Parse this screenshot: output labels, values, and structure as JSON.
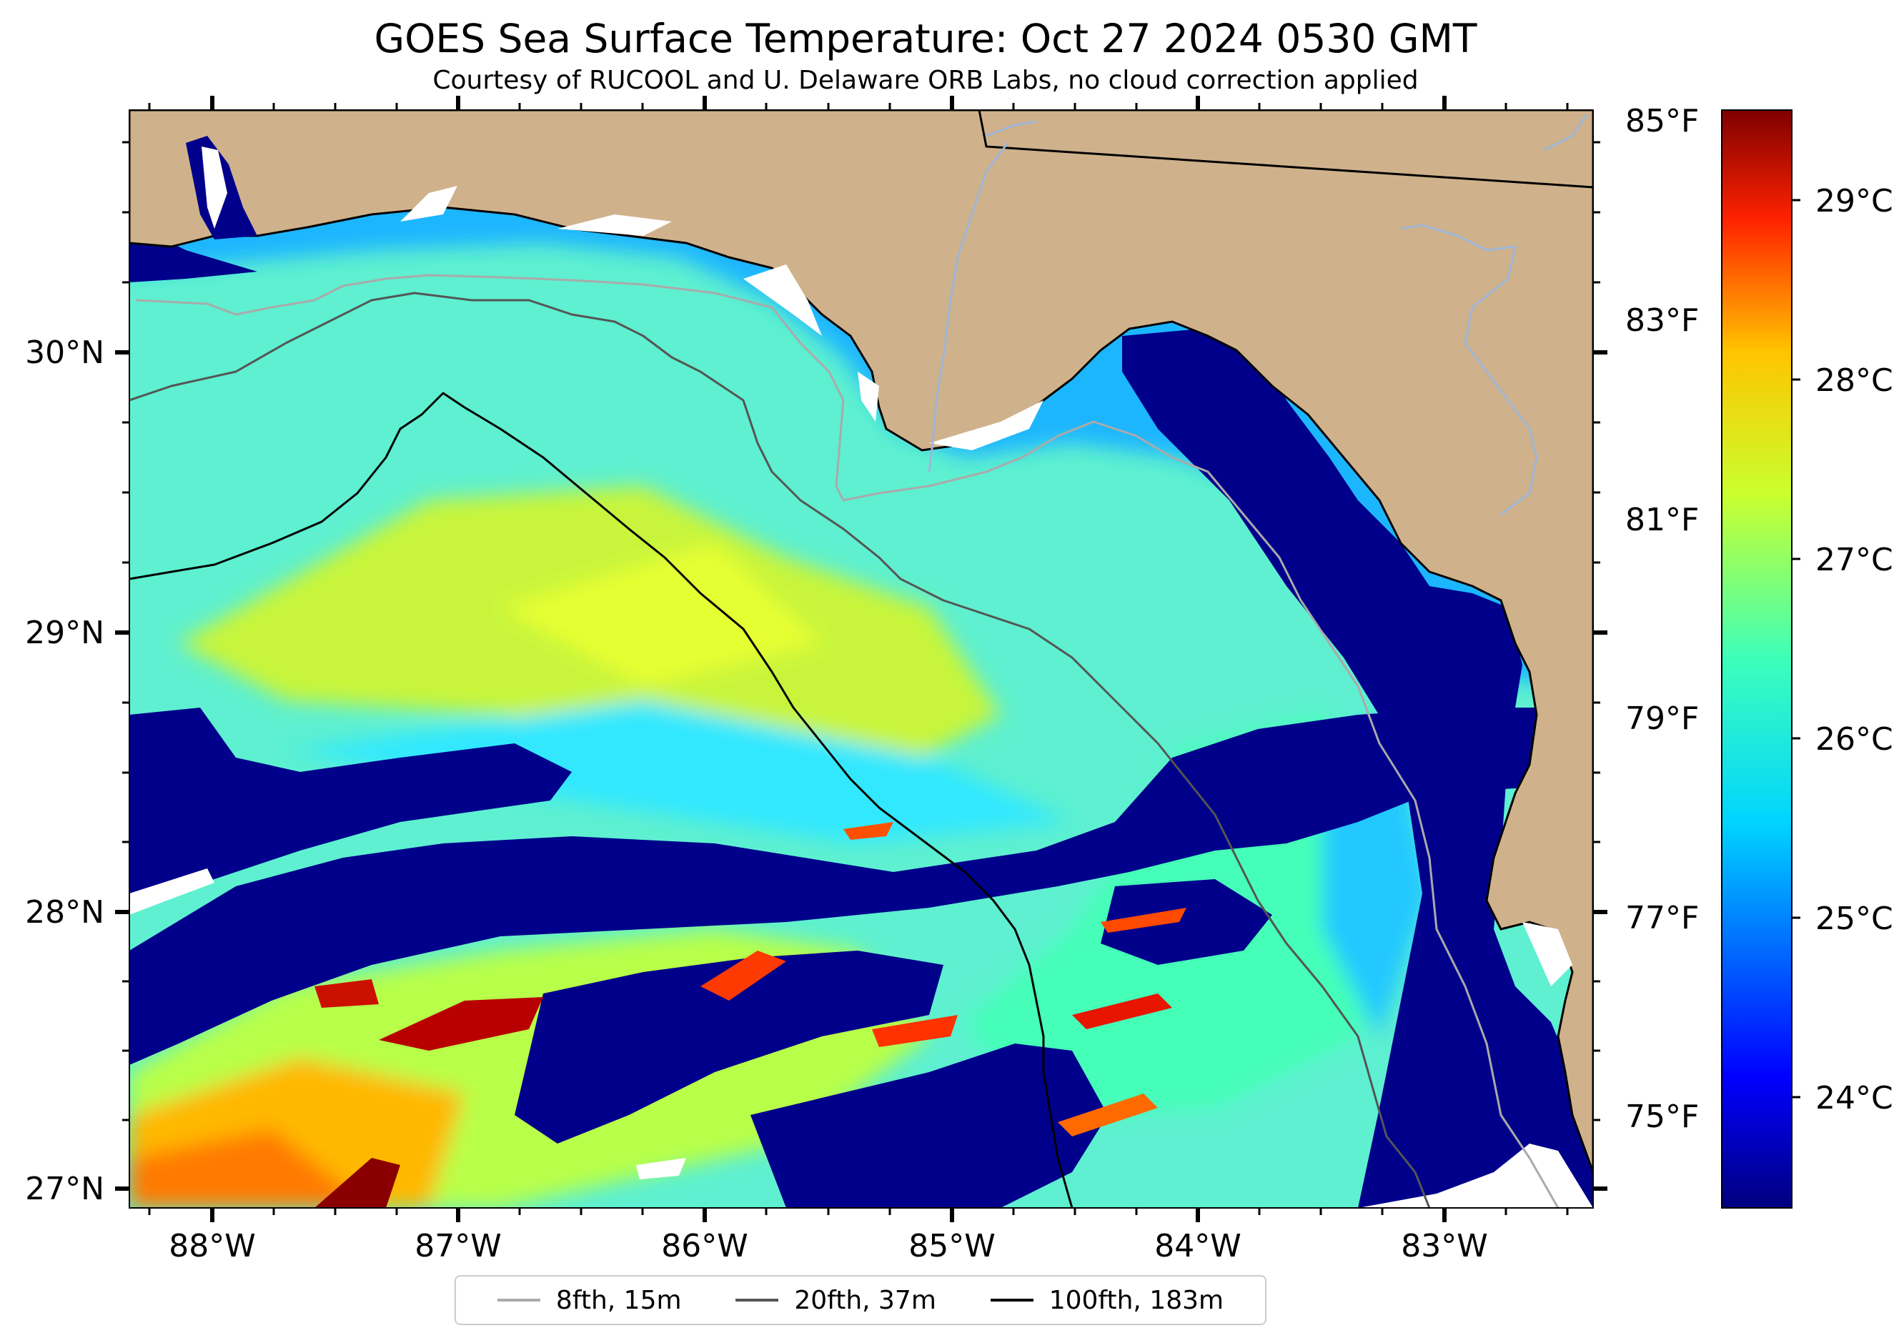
{
  "title": "GOES Sea Surface Temperature: Oct 27 2024 0530 GMT",
  "subtitle": "Courtesy of RUCOOL and U. Delaware ORB Labs, no cloud correction applied",
  "map": {
    "lon_range": [
      -88.33,
      -82.39
    ],
    "lat_range": [
      26.93,
      30.85
    ],
    "lon_ticks": [
      "88°W",
      "87°W",
      "86°W",
      "85°W",
      "84°W",
      "83°W"
    ],
    "lat_ticks": [
      "30°N",
      "29°N",
      "28°N",
      "27°N"
    ],
    "land_color": "#cfb28b",
    "coast_color": "#000000",
    "river_color": "#9fb6d6"
  },
  "colorbar": {
    "fahrenheit_ticks": [
      "85°F",
      "83°F",
      "81°F",
      "79°F",
      "77°F",
      "75°F"
    ],
    "celsius_ticks": [
      "29°C",
      "28°C",
      "27°C",
      "26°C",
      "25°C",
      "24°C"
    ],
    "colormap": "jet",
    "range_c": [
      23.4,
      29.5
    ]
  },
  "legend": {
    "items": [
      {
        "label": "8fth, 15m",
        "color": "#aaaaaa"
      },
      {
        "label": "20fth, 37m",
        "color": "#555555"
      },
      {
        "label": "100fth, 183m",
        "color": "#000000"
      }
    ]
  }
}
